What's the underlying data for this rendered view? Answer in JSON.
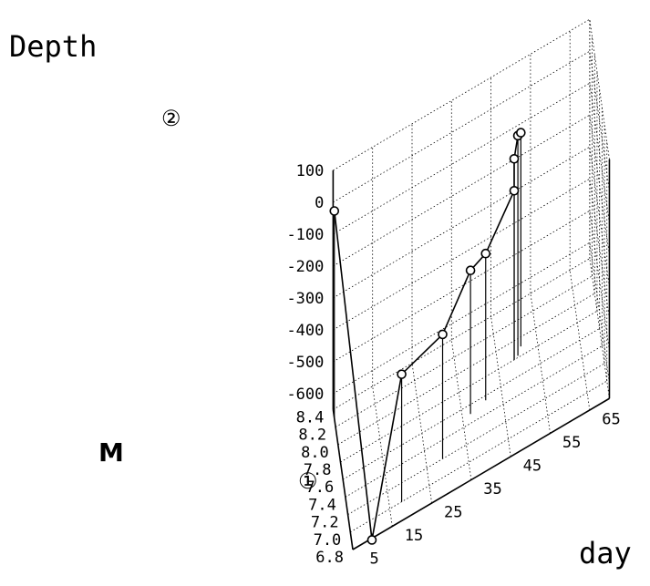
{
  "chart_data": {
    "type": "scatter",
    "projection": "3d",
    "axes": {
      "x": {
        "label": "day",
        "ticks": [
          "5",
          "15",
          "25",
          "35",
          "45",
          "55",
          "65"
        ],
        "range": [
          0,
          65
        ]
      },
      "y": {
        "label": "M",
        "ticks": [
          "6.8",
          "7.0",
          "7.2",
          "7.4",
          "7.6",
          "7.8",
          "8.0",
          "8.2",
          "8.4"
        ],
        "range": [
          6.8,
          8.4
        ]
      },
      "z": {
        "label": "Depth",
        "ticks": [
          "100",
          "0",
          "-100",
          "-200",
          "-300",
          "-400",
          "-500",
          "-600"
        ],
        "range": [
          -650,
          100
        ]
      }
    },
    "grid": true,
    "series": [
      {
        "points": [
          {
            "day": 0,
            "m": 8.3,
            "depth": 0
          },
          {
            "day": 5,
            "m": 6.85,
            "depth": -670
          },
          {
            "day": 13,
            "m": 7.0,
            "depth": -250
          },
          {
            "day": 24,
            "m": 7.2,
            "depth": -260
          },
          {
            "day": 32,
            "m": 7.5,
            "depth": -200
          },
          {
            "day": 36,
            "m": 7.55,
            "depth": -190
          },
          {
            "day": 44,
            "m": 7.8,
            "depth": -120
          },
          {
            "day": 44,
            "m": 7.8,
            "depth": -20
          },
          {
            "day": 45,
            "m": 7.82,
            "depth": 40
          },
          {
            "day": 46,
            "m": 7.9,
            "depth": 20
          }
        ]
      }
    ],
    "annotations": [
      {
        "text": "①",
        "point_index": 1
      },
      {
        "text": "②",
        "point_index": 0
      }
    ]
  }
}
